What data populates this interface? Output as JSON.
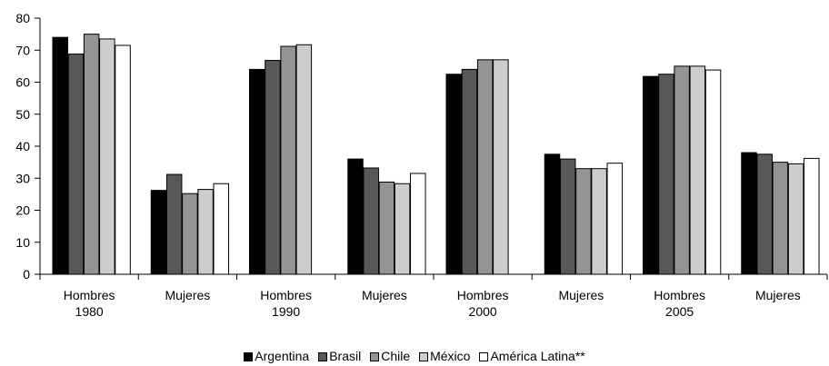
{
  "chart_data": {
    "type": "bar",
    "title": "",
    "xlabel": "",
    "ylabel": "",
    "ylim": [
      0,
      80
    ],
    "yticks": [
      "0",
      "10",
      "20",
      "30",
      "40",
      "50",
      "60",
      "70",
      "80"
    ],
    "categories": [
      [
        "Hombres",
        "1980"
      ],
      [
        "Mujeres"
      ],
      [
        "Hombres",
        "1990"
      ],
      [
        "Mujeres"
      ],
      [
        "Hombres",
        "2000"
      ],
      [
        "Mujeres"
      ],
      [
        "Hombres",
        "2005"
      ],
      [
        "Mujeres"
      ]
    ],
    "series": [
      {
        "name": "Argentina",
        "color": "#000000",
        "values": [
          74.0,
          26.2,
          64.0,
          36.0,
          62.5,
          37.5,
          61.8,
          38.0
        ]
      },
      {
        "name": "Brasil",
        "color": "#58585a",
        "values": [
          68.8,
          31.2,
          66.8,
          33.2,
          64.0,
          36.0,
          62.5,
          37.5
        ]
      },
      {
        "name": "Chile",
        "color": "#949496",
        "values": [
          75.0,
          25.2,
          71.2,
          28.8,
          67.0,
          33.0,
          65.0,
          35.0
        ]
      },
      {
        "name": "México",
        "color": "#cdcdcf",
        "values": [
          73.5,
          26.5,
          71.7,
          28.3,
          67.0,
          33.0,
          65.0,
          34.5
        ]
      },
      {
        "name": "América Latina**",
        "color": "#ffffff",
        "values": [
          71.5,
          28.3,
          null,
          31.5,
          null,
          34.7,
          63.8,
          36.2
        ]
      }
    ],
    "grid": false,
    "legend_position": "bottom"
  }
}
